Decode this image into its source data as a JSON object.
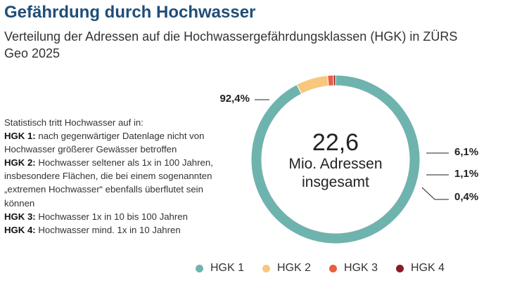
{
  "header": {
    "title": "Gefährdung durch Hochwasser",
    "subtitle": "Verteilung der Adressen auf die Hochwassergefährdungsklassen (HGK) in ZÜRS Geo 2025"
  },
  "explanation": {
    "intro": "Statistisch tritt Hochwasser auf in:",
    "items": [
      {
        "term": "HGK 1:",
        "text": " nach gegenwärtiger Datenlage nicht von Hochwasser größerer Gewässer betroffen"
      },
      {
        "term": "HGK 2:",
        "text": " Hochwasser seltener als 1x in 100 Jahren, insbesondere Flächen, die bei einem sogenannten „extremen Hoch­wasser“ ebenfalls überflutet sein können"
      },
      {
        "term": "HGK 3:",
        "text": " Hochwasser 1x in 10 bis 100 Jahren"
      },
      {
        "term": "HGK 4:",
        "text": " Hochwasser mind. 1x in 10 Jahren"
      }
    ]
  },
  "chart_data": {
    "type": "pie",
    "donut": true,
    "title": "Gefährdung durch Hochwasser",
    "subtitle": "Verteilung der Adressen auf die Hochwassergefährdungsklassen (HGK) in ZÜRS Geo 2025",
    "center_value": "22,6",
    "center_label_line1": "Mio. Adressen",
    "center_label_line2": "insgesamt",
    "legend_position": "bottom",
    "categories": [
      "HGK 1",
      "HGK 2",
      "HGK 3",
      "HGK 4"
    ],
    "values": [
      92.4,
      6.1,
      1.1,
      0.4
    ],
    "value_labels": [
      "92,4%",
      "6,1%",
      "1,1%",
      "0,4%"
    ],
    "colors": [
      "#6fb3ae",
      "#f8c77d",
      "#e8603e",
      "#8b1a2b"
    ]
  }
}
